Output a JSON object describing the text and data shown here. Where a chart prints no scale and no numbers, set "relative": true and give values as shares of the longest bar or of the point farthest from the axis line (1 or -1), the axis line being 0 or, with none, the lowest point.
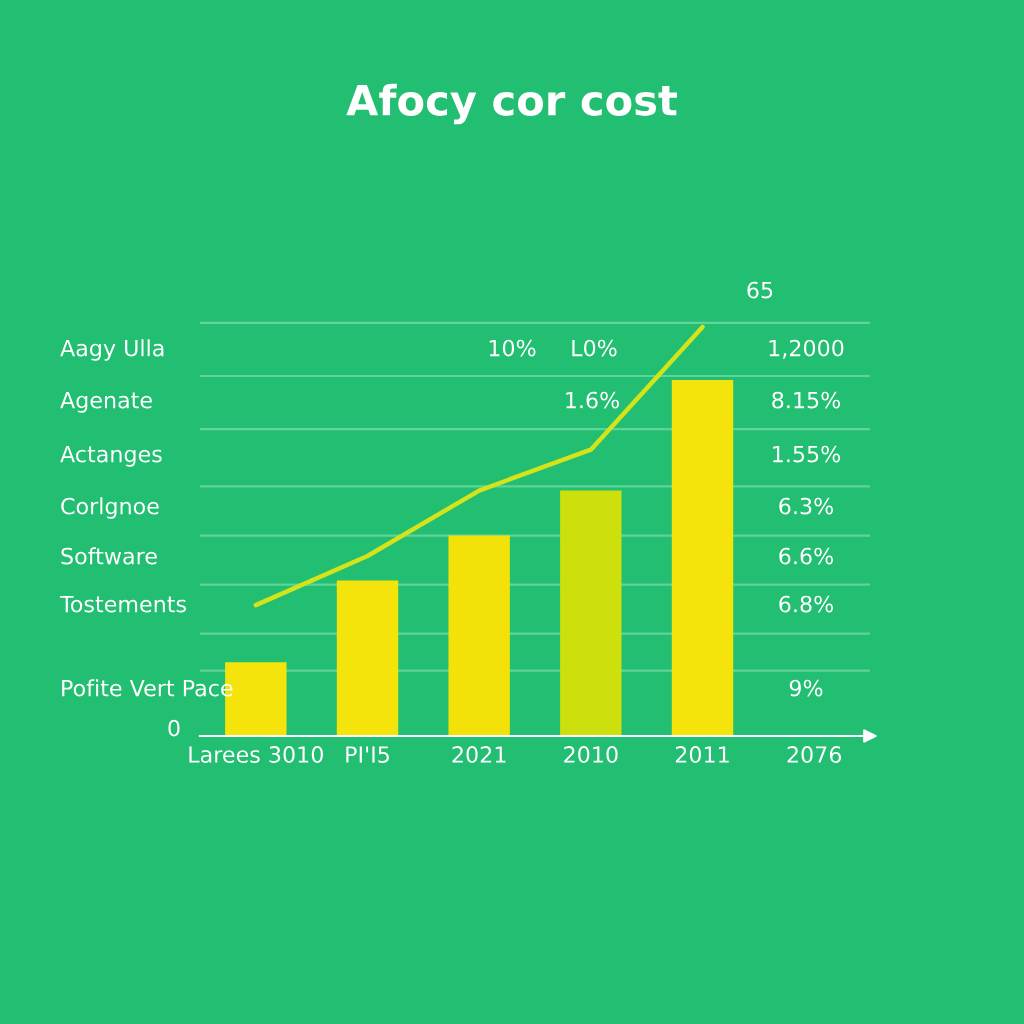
{
  "chart_data": {
    "type": "bar",
    "title": "Afocy cor cost",
    "relative": true,
    "ref_lines": [
      {
        "axis": "y",
        "value": 1.01,
        "color": "#5fd39a"
      },
      {
        "axis": "y",
        "value": 0.88,
        "color": "#5fd39a"
      },
      {
        "axis": "y",
        "value": 0.75,
        "color": "#5fd39a"
      },
      {
        "axis": "y",
        "value": 0.61,
        "color": "#5fd39a"
      },
      {
        "axis": "y",
        "value": 0.49,
        "color": "#5fd39a"
      },
      {
        "axis": "y",
        "value": 0.37,
        "color": "#5fd39a"
      },
      {
        "axis": "y",
        "value": 0.25,
        "color": "#5fd39a"
      },
      {
        "axis": "y",
        "value": 0.16,
        "color": "#5fd39a"
      }
    ],
    "categories": [
      "Larees 3010",
      "PI'I5",
      "2021",
      "2010",
      "2011",
      "2076"
    ],
    "series": [
      {
        "colors": [
          "#f4e40c",
          "#f4e40c",
          "#f2e20a",
          "#cde00e",
          "#f4e40c",
          null
        ],
        "values": [
          0.18,
          0.38,
          0.49,
          0.6,
          0.87,
          null
        ]
      },
      {
        "type": "line",
        "color": "#d4e31a",
        "values": [
          0.32,
          0.44,
          0.6,
          0.7,
          1.0,
          null
        ]
      }
    ],
    "annotations": [
      "Aagy Ulla",
      "Agenate",
      "Actanges",
      "Corlgnoe",
      "Software",
      "Tostements",
      "Pofite Vert Pace",
      "1,2000",
      "8.15%",
      "1.55%",
      "6.3%",
      "6.6%",
      "6.8%",
      "9%",
      "10%",
      "L0%",
      "1.6%",
      "65",
      "0"
    ]
  }
}
